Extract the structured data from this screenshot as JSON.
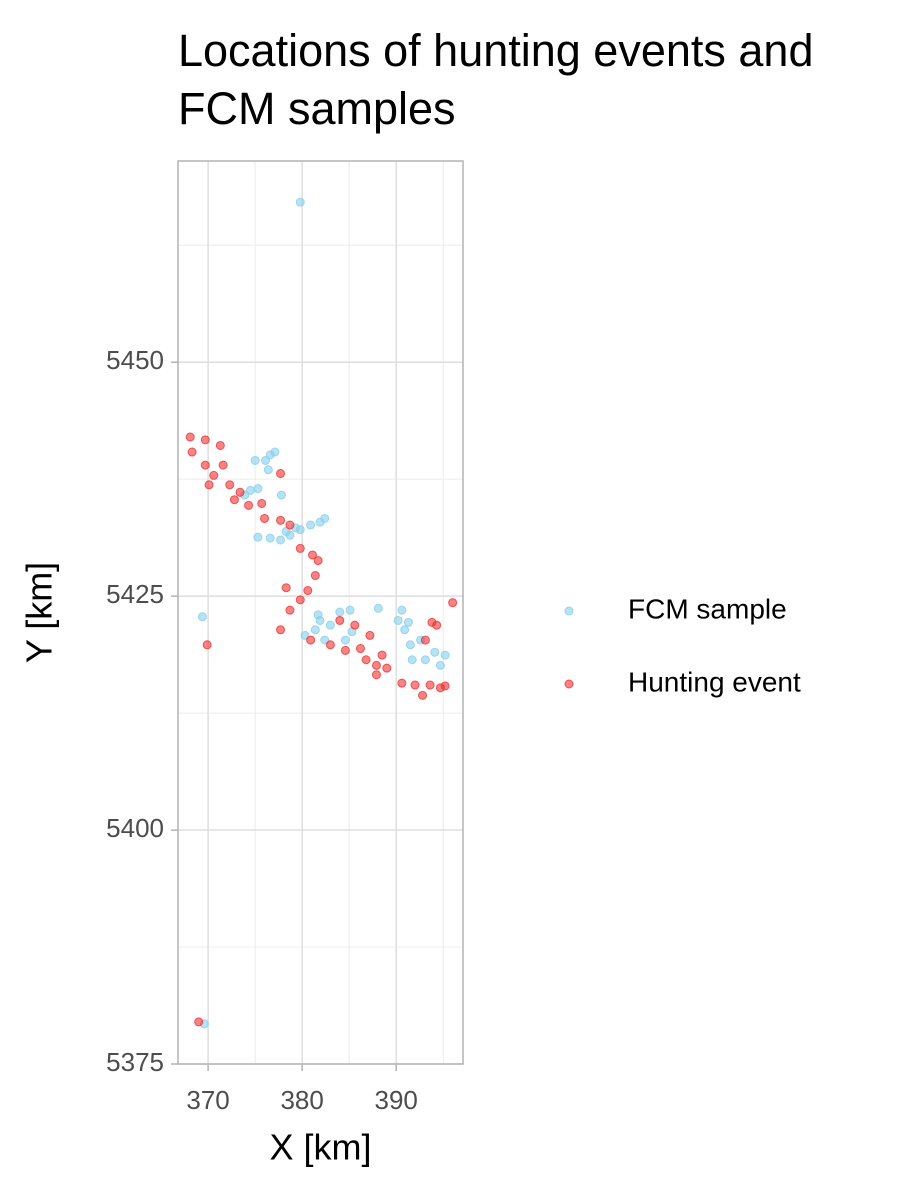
{
  "chart_data": {
    "type": "scatter",
    "title": "Locations of hunting events and FCM samples",
    "x_label": "X [km]",
    "y_label": "Y [km]",
    "xlim": [
      366.8,
      397.1
    ],
    "ylim": [
      5375,
      5471.5
    ],
    "xticks": [
      370,
      380,
      390
    ],
    "yticks": [
      5375,
      5400,
      5425,
      5450
    ],
    "minor_xticks": [
      375,
      385,
      395
    ],
    "minor_yticks": [
      5387.5,
      5412.5,
      5437.5,
      5462.5
    ],
    "grid": true,
    "legend": "right",
    "series": [
      {
        "name": "FCM sample",
        "color": "#87ceeb",
        "x": [
          379.8,
          369.4,
          369.6,
          376.6,
          377.1,
          376.1,
          375.0,
          376.4,
          374.5,
          375.3,
          373.9,
          377.8,
          375.3,
          376.6,
          377.7,
          378.7,
          379.8,
          380.9,
          381.9,
          382.4,
          379.3,
          378.3,
          380.3,
          381.4,
          381.9,
          382.4,
          383.0,
          381.7,
          384.0,
          385.1,
          385.3,
          384.6,
          388.1,
          390.2,
          390.6,
          390.9,
          391.5,
          391.7,
          392.6,
          393.1,
          394.1,
          394.7,
          395.2,
          391.3
        ],
        "values": [
          5467.1,
          5422.8,
          5379.3,
          5440.1,
          5440.4,
          5439.5,
          5439.5,
          5438.5,
          5436.3,
          5436.5,
          5435.8,
          5435.8,
          5431.3,
          5431.2,
          5431.0,
          5431.5,
          5432.1,
          5432.6,
          5432.9,
          5433.3,
          5432.3,
          5431.9,
          5420.8,
          5421.4,
          5422.4,
          5420.3,
          5421.9,
          5423.0,
          5423.3,
          5423.5,
          5421.2,
          5420.3,
          5423.7,
          5422.4,
          5423.5,
          5421.4,
          5419.8,
          5418.2,
          5420.3,
          5418.2,
          5419.0,
          5417.6,
          5418.7,
          5422.2
        ]
      },
      {
        "name": "Hunting event",
        "color": "#f03232",
        "x": [
          368.1,
          369.7,
          368.3,
          371.3,
          369.7,
          371.6,
          370.6,
          370.1,
          372.3,
          373.4,
          372.8,
          374.3,
          375.7,
          376.0,
          377.7,
          378.7,
          379.8,
          381.1,
          381.7,
          381.4,
          380.6,
          379.8,
          378.7,
          377.7,
          378.3,
          377.7,
          369.9,
          369.0,
          380.9,
          383.0,
          384.6,
          386.2,
          386.8,
          387.9,
          388.5,
          389.0,
          387.2,
          384.0,
          385.6,
          387.9,
          390.6,
          392.0,
          392.8,
          393.6,
          394.7,
          395.2,
          393.8,
          394.3,
          396.0,
          393.1
        ],
        "values": [
          5442.0,
          5441.7,
          5440.4,
          5441.1,
          5439.0,
          5439.0,
          5437.9,
          5436.9,
          5436.9,
          5436.1,
          5435.3,
          5434.7,
          5434.9,
          5433.3,
          5433.1,
          5432.6,
          5430.1,
          5429.4,
          5428.8,
          5427.2,
          5425.6,
          5424.6,
          5423.5,
          5421.4,
          5425.9,
          5438.1,
          5419.8,
          5379.5,
          5420.3,
          5419.8,
          5419.2,
          5419.4,
          5418.2,
          5417.6,
          5418.7,
          5417.3,
          5420.8,
          5422.4,
          5421.9,
          5416.6,
          5415.7,
          5415.5,
          5414.4,
          5415.5,
          5415.2,
          5415.4,
          5422.2,
          5421.9,
          5424.3,
          5420.3
        ]
      }
    ]
  }
}
